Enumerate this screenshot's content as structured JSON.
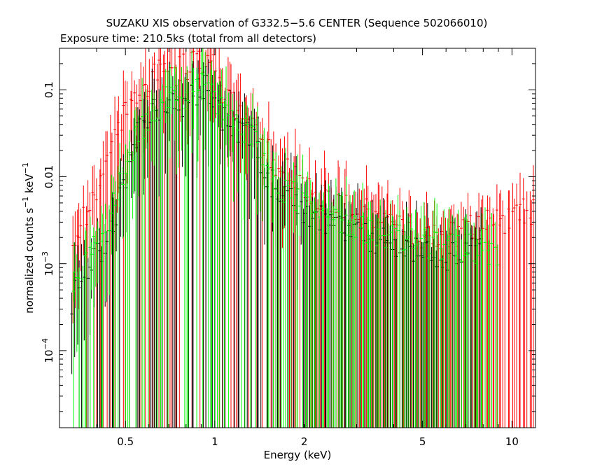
{
  "chart_data": {
    "type": "scatter",
    "title": "SUZAKU XIS observation of G332.5−5.6 CENTER (Sequence 502066010)",
    "subtitle": "Exposure time: 210.5ks (total from all detectors)",
    "xlabel": "Energy (keV)",
    "ylabel_main": "normalized counts s",
    "ylabel_sup1": "−1",
    "ylabel_mid": " keV",
    "ylabel_sup2": "−1",
    "x_scale": "log",
    "y_scale": "log",
    "xlim": [
      0.3,
      12.0
    ],
    "ylim": [
      1.3e-05,
      0.3
    ],
    "grid": false,
    "x_ticks": [
      {
        "value": 0.5,
        "label": "0.5"
      },
      {
        "value": 1,
        "label": "1"
      },
      {
        "value": 2,
        "label": "2"
      },
      {
        "value": 5,
        "label": "5"
      },
      {
        "value": 10,
        "label": "10"
      }
    ],
    "y_ticks": [
      {
        "value": 0.1,
        "label": "0.1"
      },
      {
        "value": 0.01,
        "label": "0.01"
      },
      {
        "value": 0.001,
        "base": "10",
        "exp": "−3"
      },
      {
        "value": 0.0001,
        "base": "10",
        "exp": "−4"
      }
    ],
    "series": [
      {
        "color": "#ff0000",
        "x": [
          0.33,
          0.4,
          0.44,
          0.48,
          0.52,
          0.56,
          0.6,
          0.65,
          0.7,
          0.75,
          0.8,
          0.85,
          0.9,
          0.95,
          1.0,
          1.1,
          1.2,
          1.3,
          1.4,
          1.5,
          1.7,
          2.0,
          2.5,
          3.0,
          3.5,
          4.0,
          5.0,
          6.0,
          7.0,
          8.0,
          9.0,
          10.0,
          11.0,
          12.0
        ],
        "y": [
          0.0018,
          0.006,
          0.02,
          0.045,
          0.07,
          0.1,
          0.13,
          0.15,
          0.17,
          0.16,
          0.18,
          0.2,
          0.22,
          0.25,
          0.15,
          0.08,
          0.06,
          0.055,
          0.04,
          0.02,
          0.012,
          0.008,
          0.005,
          0.004,
          0.0035,
          0.0028,
          0.0022,
          0.002,
          0.0025,
          0.003,
          0.003,
          0.0035,
          0.004,
          0.004
        ]
      },
      {
        "color": "#000000",
        "x": [
          0.33,
          0.44,
          0.5,
          0.55,
          0.6,
          0.65,
          0.7,
          0.75,
          0.8,
          0.85,
          0.9,
          0.95,
          1.0,
          1.1,
          1.2,
          1.3,
          1.4,
          1.5,
          1.7,
          2.0,
          2.5,
          3.0,
          3.5,
          4.0,
          5.0,
          6.0,
          7.0,
          8.0
        ],
        "y": [
          0.00038,
          0.002,
          0.01,
          0.03,
          0.05,
          0.06,
          0.07,
          0.06,
          0.08,
          0.09,
          0.1,
          0.12,
          0.07,
          0.04,
          0.03,
          0.035,
          0.02,
          0.01,
          0.006,
          0.004,
          0.0028,
          0.0022,
          0.0018,
          0.0016,
          0.0013,
          0.0012,
          0.0014,
          0.0015
        ]
      },
      {
        "color": "#00ff00",
        "x": [
          0.33,
          0.44,
          0.5,
          0.55,
          0.6,
          0.65,
          0.7,
          0.75,
          0.8,
          0.85,
          0.9,
          0.95,
          1.0,
          1.1,
          1.2,
          1.3,
          1.4,
          1.5,
          1.7,
          2.0,
          2.5,
          3.0,
          3.5,
          4.0,
          5.0,
          6.0,
          7.0,
          8.0,
          9.0
        ],
        "y": [
          0.0005,
          0.003,
          0.012,
          0.03,
          0.05,
          0.07,
          0.08,
          0.07,
          0.09,
          0.1,
          0.11,
          0.12,
          0.08,
          0.05,
          0.035,
          0.035,
          0.02,
          0.012,
          0.007,
          0.005,
          0.0035,
          0.0028,
          0.0022,
          0.002,
          0.0017,
          0.0015,
          0.0015,
          0.0015,
          0.0012
        ]
      }
    ]
  }
}
